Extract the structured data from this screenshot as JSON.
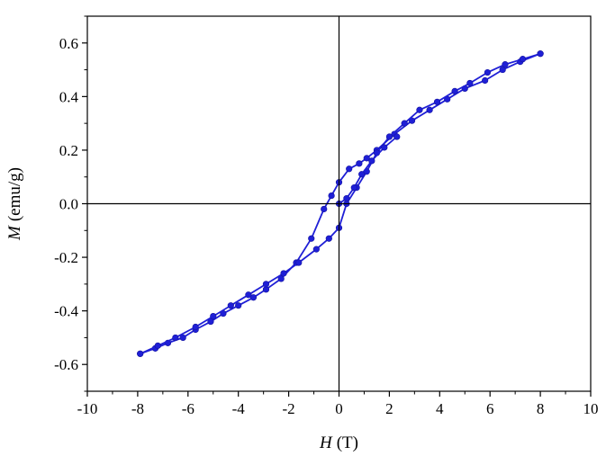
{
  "chart_data": {
    "type": "line",
    "xlabel": {
      "symbol": "H",
      "unit": "(T)"
    },
    "ylabel": {
      "symbol": "M",
      "unit": "(emu/g)"
    },
    "xlim": [
      -10,
      10
    ],
    "ylim": [
      -0.7,
      0.7
    ],
    "x_ticks": [
      -10,
      -8,
      -6,
      -4,
      -2,
      0,
      2,
      4,
      6,
      8,
      10
    ],
    "y_ticks": [
      -0.6,
      -0.4,
      -0.2,
      0.0,
      0.2,
      0.4,
      0.6
    ],
    "x_tick_labels": [
      "-10",
      "-8",
      "-6",
      "-4",
      "-2",
      "0",
      "2",
      "4",
      "6",
      "8",
      "10"
    ],
    "y_tick_labels": [
      "-0.6",
      "-0.4",
      "-0.2",
      "0.0",
      "0.2",
      "0.4",
      "0.6"
    ],
    "zero_lines": true,
    "grid": false,
    "legend": "none",
    "color": "#1f1fd6",
    "series": [
      {
        "x": [
          8.0,
          7.2,
          6.5,
          5.8,
          5.0,
          4.3,
          3.6,
          2.9,
          2.2,
          1.5,
          1.1,
          0.8,
          0.4,
          0.0,
          -0.3,
          -0.6,
          -1.1,
          -1.7,
          -2.3,
          -2.9,
          -3.4,
          -4.0,
          -4.6,
          -5.1,
          -5.7,
          -6.2,
          -6.8,
          -7.3,
          -7.9
        ],
        "y": [
          0.56,
          0.53,
          0.5,
          0.46,
          0.43,
          0.39,
          0.35,
          0.31,
          0.26,
          0.2,
          0.17,
          0.15,
          0.13,
          0.08,
          0.03,
          -0.02,
          -0.13,
          -0.22,
          -0.28,
          -0.32,
          -0.35,
          -0.38,
          -0.41,
          -0.44,
          -0.47,
          -0.5,
          -0.52,
          -0.54,
          -0.56
        ]
      },
      {
        "x": [
          -7.9,
          -7.2,
          -6.5,
          -5.7,
          -5.0,
          -4.3,
          -3.6,
          -2.9,
          -2.2,
          -1.6,
          -0.9,
          -0.4,
          0.0,
          0.3,
          0.7,
          1.1,
          1.5,
          2.0,
          2.6,
          3.2,
          3.9,
          4.6,
          5.2,
          5.9,
          6.6,
          7.3,
          8.0
        ],
        "y": [
          -0.56,
          -0.53,
          -0.5,
          -0.46,
          -0.42,
          -0.38,
          -0.34,
          -0.3,
          -0.26,
          -0.22,
          -0.17,
          -0.13,
          -0.09,
          0.0,
          0.06,
          0.12,
          0.19,
          0.25,
          0.3,
          0.35,
          0.38,
          0.42,
          0.45,
          0.49,
          0.52,
          0.54,
          0.56
        ]
      },
      {
        "x": [
          0.0,
          0.3,
          0.6,
          0.9,
          1.3,
          1.8,
          2.3
        ],
        "y": [
          0.0,
          0.02,
          0.06,
          0.11,
          0.16,
          0.21,
          0.25
        ]
      }
    ]
  }
}
